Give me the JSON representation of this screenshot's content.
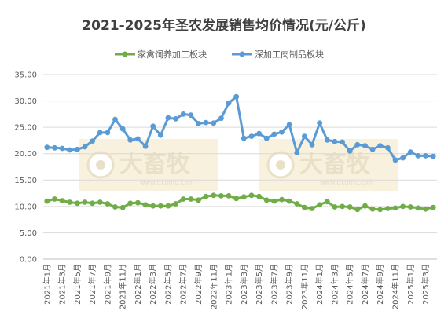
{
  "chart_data": {
    "type": "line",
    "title": "2021-2025年圣农发展销售均价情况(元/公斤)",
    "ylim": [
      0,
      35
    ],
    "yticks": [
      "0.00",
      "5.00",
      "10.00",
      "15.00",
      "20.00",
      "25.00",
      "30.00",
      "35.00"
    ],
    "legend_position": "top",
    "grid": true,
    "x": [
      "2021年1月",
      "2021年2月",
      "2021年3月",
      "2021年4月",
      "2021年5月",
      "2021年6月",
      "2021年7月",
      "2021年8月",
      "2021年9月",
      "2021年10月",
      "2021年11月",
      "2021年12月",
      "2022年1月",
      "2022年2月",
      "2022年3月",
      "2022年4月",
      "2022年5月",
      "2022年6月",
      "2022年7月",
      "2022年8月",
      "2022年9月",
      "2022年10月",
      "2022年11月",
      "2022年12月",
      "2023年1月",
      "2023年2月",
      "2023年3月",
      "2023年4月",
      "2023年5月",
      "2023年6月",
      "2023年7月",
      "2023年8月",
      "2023年9月",
      "2023年10月",
      "2023年11月",
      "2023年12月",
      "2024年1月",
      "2024年2月",
      "2024年3月",
      "2024年4月",
      "2024年5月",
      "2024年6月",
      "2024年7月",
      "2024年8月",
      "2024年9月",
      "2024年10月",
      "2024年11月",
      "2024年12月",
      "2025年1月",
      "2025年2月",
      "2025年3月",
      "2025年4月"
    ],
    "x_tick_labels": [
      "2021年1月",
      "2021年3月",
      "2021年5月",
      "2021年7月",
      "2021年9月",
      "2021年11月",
      "2022年1月",
      "2022年3月",
      "2022年5月",
      "2022年7月",
      "2022年9月",
      "2022年11月",
      "2023年1月",
      "2023年3月",
      "2023年5月",
      "2023年7月",
      "2023年9月",
      "2023年11月",
      "2024年1月",
      "2024年3月",
      "2024年5月",
      "2024年7月",
      "2024年9月",
      "2024年11月",
      "2025年1月",
      "2025年3月"
    ],
    "series": [
      {
        "name": "家禽饲养加工板块",
        "color": "#70ad47",
        "values": [
          11.0,
          11.4,
          11.1,
          10.8,
          10.6,
          10.8,
          10.6,
          10.8,
          10.5,
          9.9,
          9.8,
          10.6,
          10.7,
          10.3,
          10.1,
          10.1,
          10.1,
          10.5,
          11.4,
          11.4,
          11.2,
          11.9,
          12.1,
          12.0,
          12.0,
          11.5,
          11.8,
          12.1,
          11.9,
          11.2,
          11.0,
          11.3,
          11.0,
          10.5,
          9.8,
          9.6,
          10.3,
          10.9,
          9.9,
          10.0,
          9.9,
          9.4,
          10.1,
          9.5,
          9.4,
          9.6,
          9.7,
          10.0,
          9.9,
          9.7,
          9.5,
          9.8
        ]
      },
      {
        "name": "深加工肉制品板块",
        "color": "#5b9bd5",
        "values": [
          21.2,
          21.1,
          21.0,
          20.7,
          20.8,
          21.3,
          22.4,
          24.0,
          24.0,
          26.5,
          24.7,
          22.6,
          22.8,
          21.4,
          25.2,
          23.5,
          26.8,
          26.6,
          27.5,
          27.3,
          25.7,
          25.9,
          25.8,
          26.7,
          29.6,
          30.8,
          22.9,
          23.3,
          23.8,
          22.9,
          23.7,
          24.1,
          25.5,
          20.2,
          23.3,
          21.7,
          25.8,
          22.6,
          22.3,
          22.2,
          20.5,
          21.7,
          21.5,
          20.8,
          21.5,
          21.1,
          18.8,
          19.2,
          20.3,
          19.6,
          19.6,
          19.5
        ]
      }
    ],
    "watermarks": [
      {
        "name": "大畜牧",
        "url": "www.dxumu.com"
      },
      {
        "name": "大畜牧",
        "url": "www.dxumu.com"
      }
    ]
  }
}
